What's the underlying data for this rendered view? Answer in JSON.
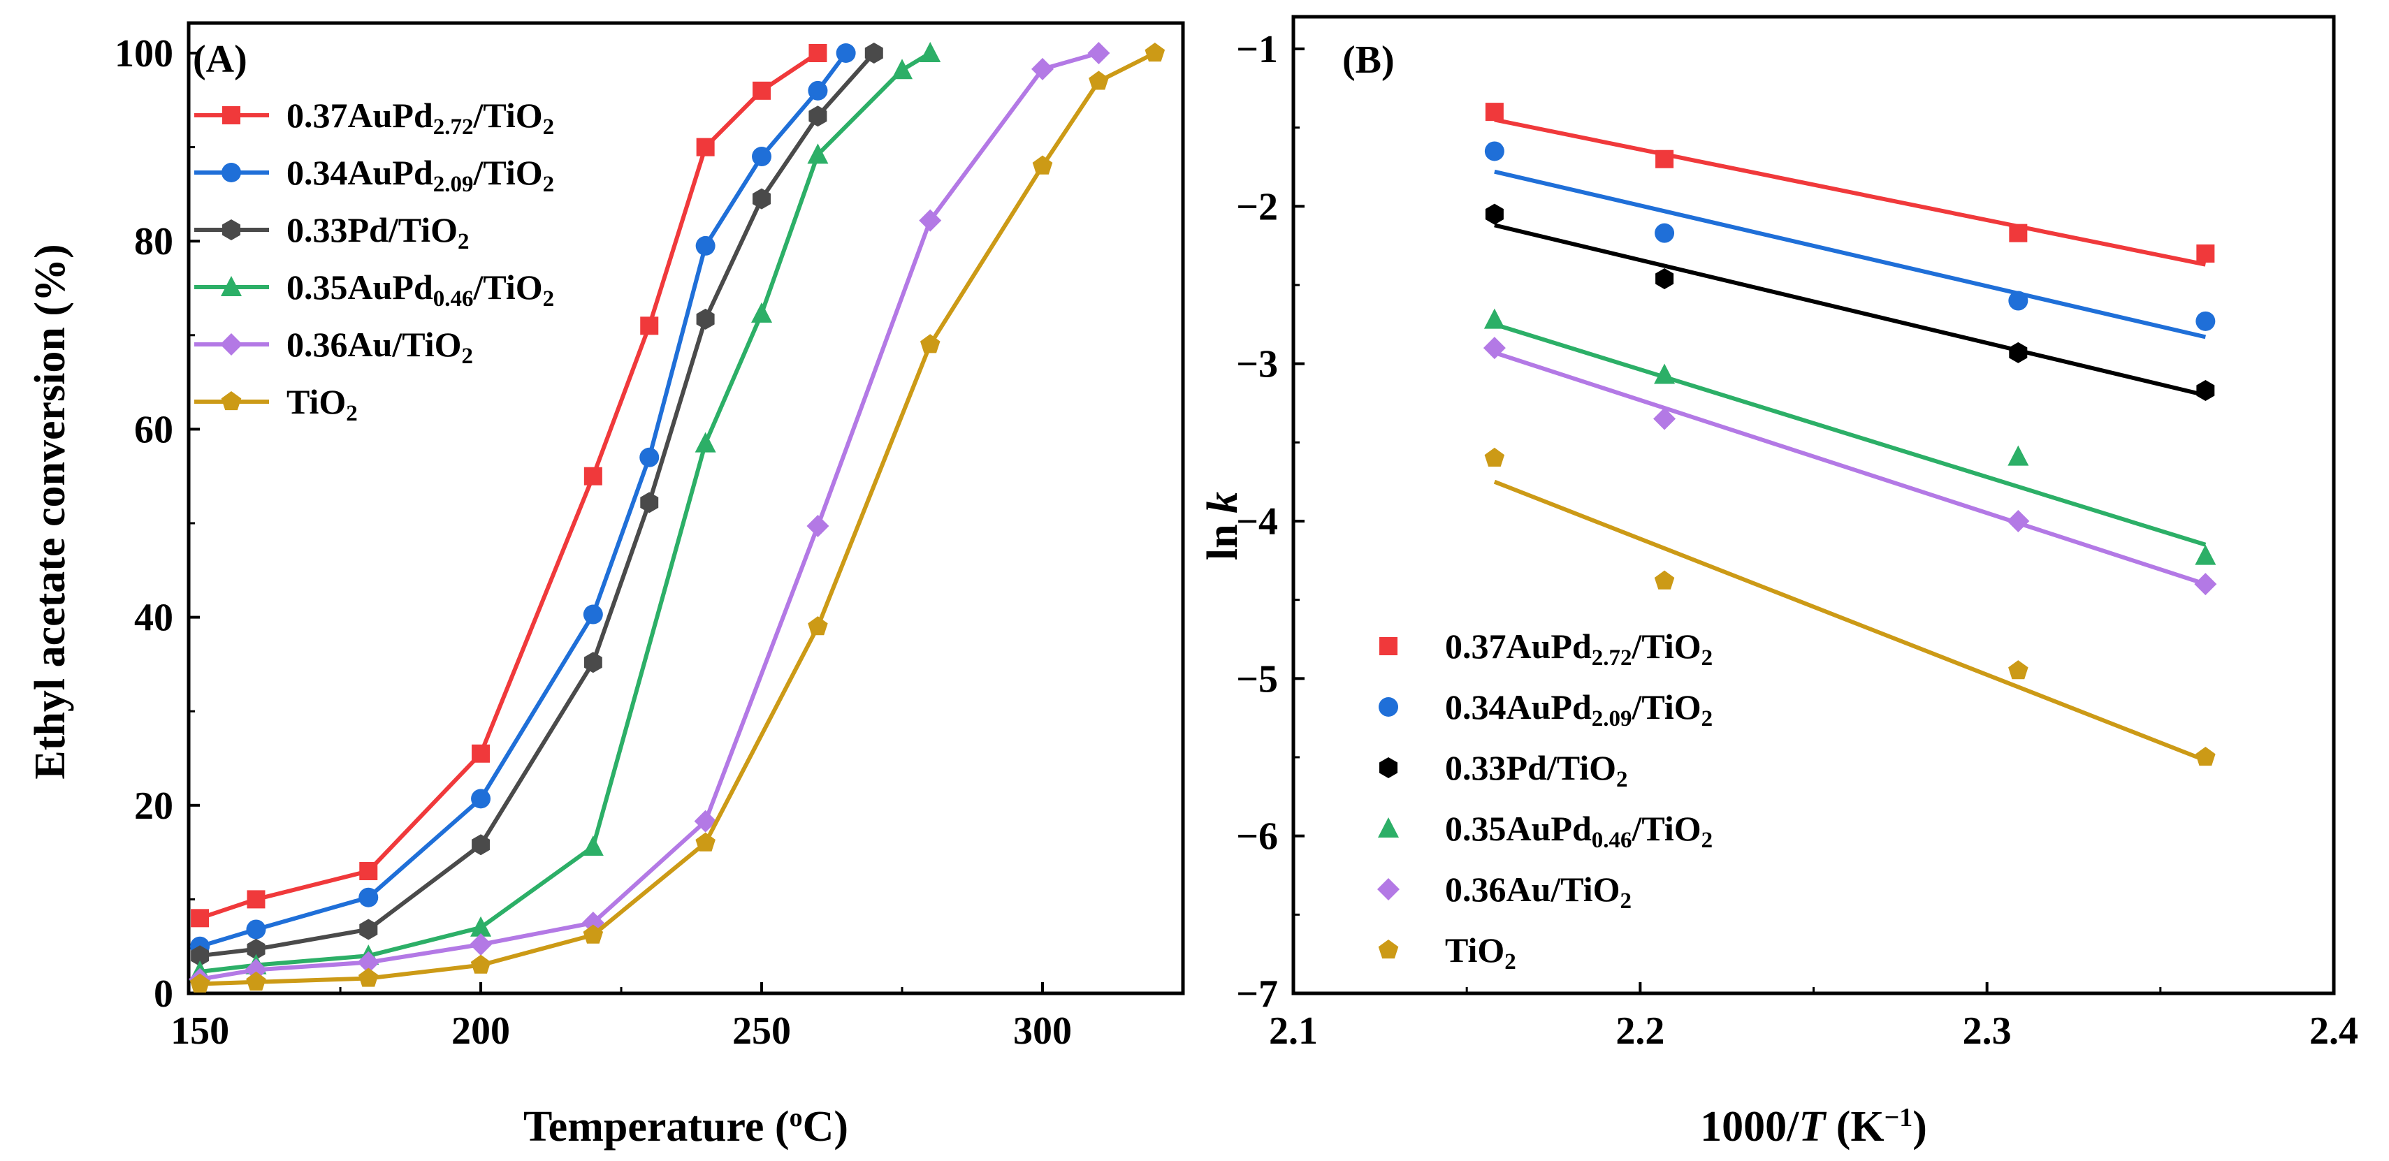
{
  "chart_data": [
    {
      "type": "line",
      "panel_label": "(A)",
      "xlabel": "Temperature (",
      "xlabel_sup": "o",
      "xlabel_tail": "C)",
      "ylabel": "Ethyl acetate conversion (%)",
      "xlim": [
        148,
        325
      ],
      "ylim": [
        0,
        100
      ],
      "xticks": [
        150,
        200,
        250,
        300
      ],
      "yticks": [
        0,
        20,
        40,
        60,
        80,
        100
      ],
      "legend_position": "upper-left",
      "series": [
        {
          "name": "0.37AuPd2.72/TiO2",
          "label_parts": [
            [
              "0.37AuPd",
              ""
            ],
            [
              "2.72",
              "sub"
            ],
            [
              "/TiO",
              ""
            ],
            [
              "2",
              "sub"
            ]
          ],
          "color": "#f0393b",
          "marker": "square",
          "x": [
            150,
            160,
            180,
            200,
            220,
            230,
            240,
            250,
            260
          ],
          "y": [
            8,
            10,
            13,
            25.5,
            55,
            71,
            90,
            96,
            100
          ]
        },
        {
          "name": "0.34AuPd2.09/TiO2",
          "label_parts": [
            [
              "0.34AuPd",
              ""
            ],
            [
              "2.09",
              "sub"
            ],
            [
              "/TiO",
              ""
            ],
            [
              "2",
              "sub"
            ]
          ],
          "color": "#1f6fd8",
          "marker": "circle",
          "x": [
            150,
            160,
            180,
            200,
            220,
            230,
            240,
            250,
            260,
            265
          ],
          "y": [
            5,
            6.8,
            10.2,
            20.7,
            40.3,
            57,
            79.5,
            89,
            96,
            100
          ]
        },
        {
          "name": "0.33Pd/TiO2",
          "label_parts": [
            [
              "0.33Pd/TiO",
              ""
            ],
            [
              "2",
              "sub"
            ]
          ],
          "color": "#4a4a4a",
          "marker": "hexagon",
          "x": [
            150,
            160,
            180,
            200,
            220,
            230,
            240,
            250,
            260,
            270
          ],
          "y": [
            4,
            4.7,
            6.8,
            15.8,
            35.2,
            52.2,
            71.7,
            84.5,
            93.3,
            100
          ]
        },
        {
          "name": "0.35AuPd0.46/TiO2",
          "label_parts": [
            [
              "0.35AuPd",
              ""
            ],
            [
              "0.46",
              "sub"
            ],
            [
              "/TiO",
              ""
            ],
            [
              "2",
              "sub"
            ]
          ],
          "color": "#2caf67",
          "marker": "triangle",
          "x": [
            150,
            160,
            180,
            200,
            220,
            240,
            250,
            260,
            275,
            280
          ],
          "y": [
            2.3,
            3,
            4,
            7,
            15.6,
            58.5,
            72.3,
            89.2,
            98.2,
            100
          ]
        },
        {
          "name": "0.36Au/TiO2",
          "label_parts": [
            [
              "0.36Au/TiO",
              ""
            ],
            [
              "2",
              "sub"
            ]
          ],
          "color": "#b379e5",
          "marker": "diamond",
          "x": [
            150,
            160,
            180,
            200,
            220,
            240,
            260,
            280,
            300,
            310
          ],
          "y": [
            1.5,
            2.5,
            3.3,
            5.2,
            7.5,
            18.3,
            49.7,
            82.2,
            98.3,
            100
          ]
        },
        {
          "name": "TiO2",
          "label_parts": [
            [
              "TiO",
              ""
            ],
            [
              "2",
              "sub"
            ]
          ],
          "color": "#cc9a16",
          "marker": "pentagon",
          "x": [
            150,
            160,
            180,
            200,
            220,
            240,
            260,
            280,
            300,
            310,
            320
          ],
          "y": [
            1,
            1.2,
            1.6,
            3,
            6.2,
            16,
            39,
            69,
            88,
            97,
            100
          ]
        }
      ]
    },
    {
      "type": "scatter",
      "panel_label": "(B)",
      "xlabel": "1000/",
      "xlabel_italic": "T",
      "xlabel_tail": " (K",
      "xlabel_sup": "−1",
      "xlabel_end": ")",
      "ylabel": "ln ",
      "ylabel_italic": "k",
      "xlim": [
        2.1,
        2.4
      ],
      "ylim": [
        -7,
        -0.8
      ],
      "xticks": [
        2.1,
        2.2,
        2.3,
        2.4
      ],
      "yticks": [
        -1,
        -2,
        -3,
        -4,
        -5,
        -6,
        -7
      ],
      "legend_position": "lower-left",
      "series": [
        {
          "name": "0.37AuPd2.72/TiO2",
          "label_parts": [
            [
              "0.37AuPd",
              ""
            ],
            [
              "2.72",
              "sub"
            ],
            [
              "/TiO",
              ""
            ],
            [
              "2",
              "sub"
            ]
          ],
          "color": "#f0393b",
          "marker": "square",
          "x": [
            2.158,
            2.207,
            2.309,
            2.363
          ],
          "y": [
            -1.4,
            -1.7,
            -2.17,
            -2.3
          ],
          "fit": [
            [
              2.158,
              -1.45
            ],
            [
              2.363,
              -2.37
            ]
          ]
        },
        {
          "name": "0.34AuPd2.09/TiO2",
          "label_parts": [
            [
              "0.34AuPd",
              ""
            ],
            [
              "2.09",
              "sub"
            ],
            [
              "/TiO",
              ""
            ],
            [
              "2",
              "sub"
            ]
          ],
          "color": "#1f6fd8",
          "marker": "circle",
          "x": [
            2.158,
            2.207,
            2.309,
            2.363
          ],
          "y": [
            -1.65,
            -2.17,
            -2.6,
            -2.73
          ],
          "fit": [
            [
              2.158,
              -1.78
            ],
            [
              2.363,
              -2.83
            ]
          ]
        },
        {
          "name": "0.33Pd/TiO2",
          "label_parts": [
            [
              "0.33Pd/TiO",
              ""
            ],
            [
              "2",
              "sub"
            ]
          ],
          "color": "#000000",
          "marker": "hexagon",
          "x": [
            2.158,
            2.207,
            2.309,
            2.363
          ],
          "y": [
            -2.05,
            -2.46,
            -2.93,
            -3.17
          ],
          "fit": [
            [
              2.158,
              -2.12
            ],
            [
              2.363,
              -3.2
            ]
          ]
        },
        {
          "name": "0.35AuPd0.46/TiO2",
          "label_parts": [
            [
              "0.35AuPd",
              ""
            ],
            [
              "0.46",
              "sub"
            ],
            [
              "/TiO",
              ""
            ],
            [
              "2",
              "sub"
            ]
          ],
          "color": "#2caf67",
          "marker": "triangle",
          "x": [
            2.158,
            2.207,
            2.309,
            2.363
          ],
          "y": [
            -2.72,
            -3.07,
            -3.59,
            -4.22
          ],
          "fit": [
            [
              2.158,
              -2.75
            ],
            [
              2.363,
              -4.15
            ]
          ]
        },
        {
          "name": "0.36Au/TiO2",
          "label_parts": [
            [
              "0.36Au/TiO",
              ""
            ],
            [
              "2",
              "sub"
            ]
          ],
          "color": "#b379e5",
          "marker": "diamond",
          "x": [
            2.158,
            2.207,
            2.309,
            2.363
          ],
          "y": [
            -2.9,
            -3.35,
            -4.0,
            -4.4
          ],
          "fit": [
            [
              2.158,
              -2.93
            ],
            [
              2.363,
              -4.4
            ]
          ]
        },
        {
          "name": "TiO2",
          "label_parts": [
            [
              "TiO",
              ""
            ],
            [
              "2",
              "sub"
            ]
          ],
          "color": "#cc9a16",
          "marker": "pentagon",
          "x": [
            2.158,
            2.207,
            2.309,
            2.363
          ],
          "y": [
            -3.6,
            -4.38,
            -4.95,
            -5.5
          ],
          "fit": [
            [
              2.158,
              -3.75
            ],
            [
              2.363,
              -5.52
            ]
          ]
        }
      ]
    }
  ]
}
